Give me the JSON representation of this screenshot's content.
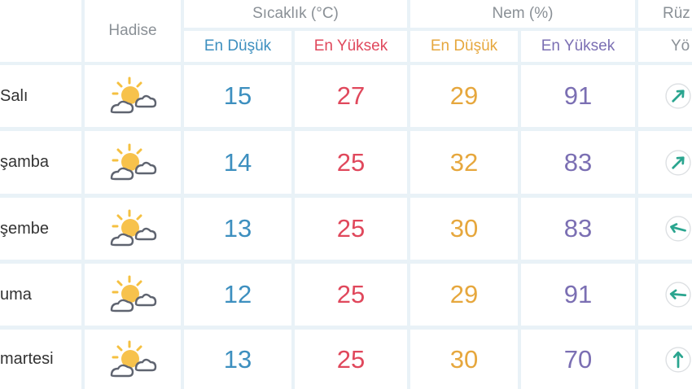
{
  "header": {
    "hadise": "Hadise",
    "temperature": "Sıcaklık (°C)",
    "humidity": "Nem (%)",
    "wind": "Rüz",
    "temp_min": "En Düşük",
    "temp_max": "En Yüksek",
    "hum_min": "En Düşük",
    "hum_max": "En Yüksek",
    "wind_dir": "Yö"
  },
  "colors": {
    "min_temp": "#3d8fbf",
    "max_temp": "#e0485c",
    "min_hum": "#e6a73d",
    "max_hum": "#7b6fb3",
    "arrow": "#2aa58f"
  },
  "rows": [
    {
      "day": "Salı",
      "icon": "partly-cloudy-icon",
      "temp_min": "15",
      "temp_max": "27",
      "hum_min": "29",
      "hum_max": "91",
      "wind_arrow_deg": 225
    },
    {
      "day": "şamba",
      "icon": "partly-cloudy-icon",
      "temp_min": "14",
      "temp_max": "25",
      "hum_min": "32",
      "hum_max": "83",
      "wind_arrow_deg": 225
    },
    {
      "day": "şembe",
      "icon": "partly-cloudy-icon",
      "temp_min": "13",
      "temp_max": "25",
      "hum_min": "30",
      "hum_max": "83",
      "wind_arrow_deg": 105
    },
    {
      "day": "uma",
      "icon": "partly-cloudy-icon",
      "temp_min": "12",
      "temp_max": "25",
      "hum_min": "29",
      "hum_max": "91",
      "wind_arrow_deg": 95
    },
    {
      "day": "martesi",
      "icon": "partly-cloudy-icon",
      "temp_min": "13",
      "temp_max": "25",
      "hum_min": "30",
      "hum_max": "70",
      "wind_arrow_deg": 180
    }
  ]
}
